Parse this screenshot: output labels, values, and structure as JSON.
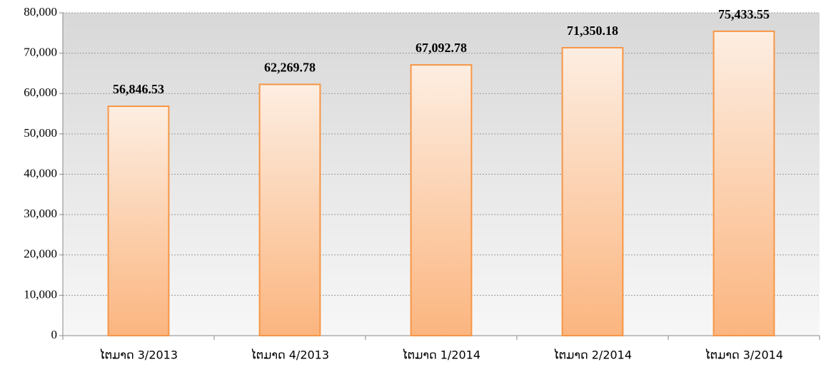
{
  "chart_data": {
    "type": "bar",
    "categories": [
      "ໄຕມາດ 3/2013",
      "ໄຕມາດ 4/2013",
      "ໄຕມາດ 1/2014",
      "ໄຕມາດ 2/2014",
      "ໄຕມາດ 3/2014"
    ],
    "values": [
      56846.53,
      62269.78,
      67092.78,
      71350.18,
      75433.55
    ],
    "value_labels": [
      "56,846.53",
      "62,269.78",
      "67,092.78",
      "71,350.18",
      "75,433.55"
    ],
    "color": "#f79646",
    "ylim": [
      0,
      80000
    ],
    "yticks": [
      0,
      {
        "value": 10000,
        "label": "10,000"
      },
      {
        "value": 20000,
        "label": "20,000"
      },
      {
        "value": 30000,
        "label": "30,000"
      },
      {
        "value": 40000,
        "label": "40,000"
      },
      {
        "value": 50000,
        "label": "50,000"
      },
      {
        "value": 60000,
        "label": "60,000"
      },
      {
        "value": 70000,
        "label": "70,000"
      },
      {
        "value": 80000,
        "label": "80,000"
      }
    ],
    "grid": true
  }
}
